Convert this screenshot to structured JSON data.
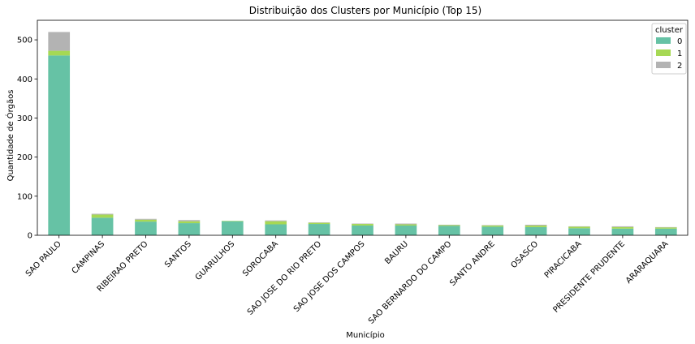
{
  "chart_data": {
    "type": "bar",
    "stacked": true,
    "title": "Distribuição dos Clusters por Município (Top 15)",
    "xlabel": "Município",
    "ylabel": "Quantidade de Órgãos",
    "ylim": [
      0,
      550
    ],
    "yticks": [
      0,
      100,
      200,
      300,
      400,
      500
    ],
    "categories": [
      "SAO PAULO",
      "CAMPINAS",
      "RIBEIRAO PRETO",
      "SANTOS",
      "GUARULHOS",
      "SOROCABA",
      "SAO JOSE DO RIO PRETO",
      "SAO JOSE DOS CAMPOS",
      "BAURU",
      "SAO BERNARDO DO CAMPO",
      "SANTO ANDRE",
      "OSASCO",
      "PIRACICABA",
      "PRESIDENTE PRUDENTE",
      "ARARAQUARA"
    ],
    "series": [
      {
        "name": "0",
        "color": "#66c2a5",
        "values": [
          460,
          45,
          35,
          31,
          36,
          28,
          29,
          25,
          25,
          24,
          22,
          21,
          18,
          17,
          17
        ]
      },
      {
        "name": "1",
        "color": "#a6d854",
        "values": [
          12,
          8,
          5,
          5,
          1,
          8,
          3,
          4,
          3,
          2,
          3,
          4,
          4,
          4,
          3
        ]
      },
      {
        "name": "2",
        "color": "#b3b3b3",
        "values": [
          48,
          2,
          2,
          3,
          0,
          2,
          1,
          1,
          2,
          1,
          1,
          2,
          1,
          2,
          1
        ]
      }
    ],
    "legend": {
      "title": "cluster",
      "position": "top-right"
    },
    "grid": false
  }
}
